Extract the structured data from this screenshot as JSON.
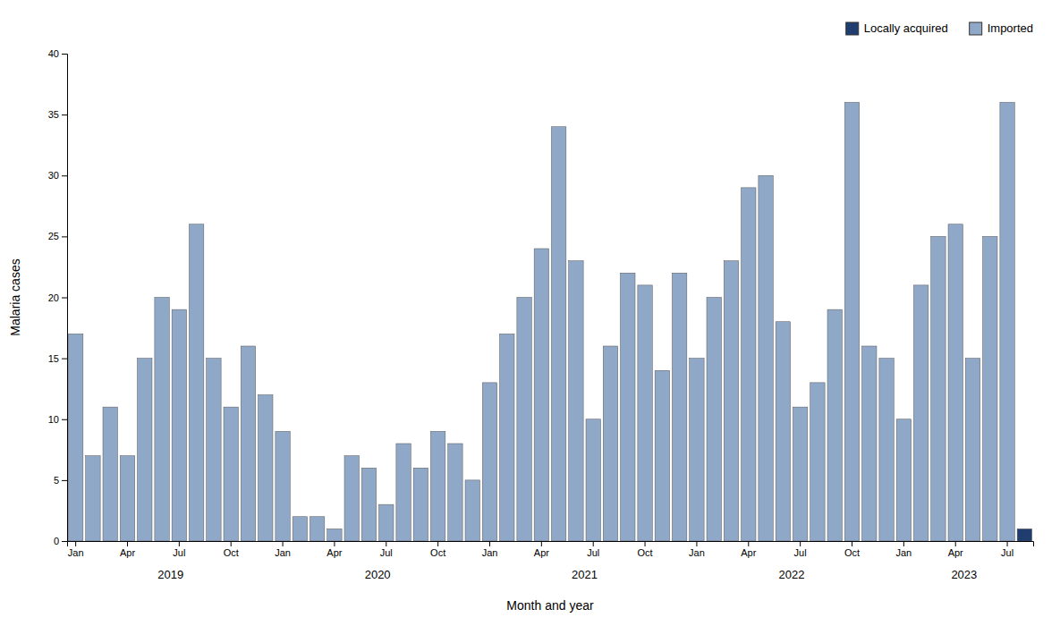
{
  "chart_data": {
    "type": "bar",
    "stacked": true,
    "xlabel": "Month and year",
    "ylabel": "Malaria cases",
    "categories": [
      "Jan",
      null,
      null,
      "Apr",
      null,
      null,
      "Jul",
      null,
      null,
      "Oct",
      null,
      null,
      "Jan",
      null,
      null,
      "Apr",
      null,
      null,
      "Jul",
      null,
      null,
      "Oct",
      null,
      null,
      "Jan",
      null,
      null,
      "Apr",
      null,
      null,
      "Jul",
      null,
      null,
      "Oct",
      null,
      null,
      "Jan",
      null,
      null,
      "Apr",
      null,
      null,
      "Jul",
      null,
      null,
      "Oct",
      null,
      null,
      "Jan",
      null,
      null,
      "Apr",
      null,
      null,
      "Jul",
      null
    ],
    "series": [
      {
        "name": "Imported",
        "color": "#8fa8c8",
        "values": [
          17,
          7,
          11,
          7,
          15,
          20,
          19,
          26,
          15,
          11,
          16,
          12,
          9,
          2,
          2,
          1,
          7,
          6,
          3,
          8,
          6,
          9,
          8,
          5,
          13,
          17,
          20,
          24,
          34,
          23,
          10,
          16,
          22,
          21,
          14,
          22,
          15,
          20,
          23,
          29,
          30,
          18,
          11,
          13,
          19,
          36,
          16,
          15,
          10,
          21,
          25,
          26,
          15,
          25,
          36,
          0
        ]
      },
      {
        "name": "Locally acquired",
        "color": "#1f3d6e",
        "values": [
          0,
          0,
          0,
          0,
          0,
          0,
          0,
          0,
          0,
          0,
          0,
          0,
          0,
          0,
          0,
          0,
          0,
          0,
          0,
          0,
          0,
          0,
          0,
          0,
          0,
          0,
          0,
          0,
          0,
          0,
          0,
          0,
          0,
          0,
          0,
          0,
          0,
          0,
          0,
          0,
          0,
          0,
          0,
          0,
          0,
          0,
          0,
          0,
          0,
          0,
          0,
          0,
          0,
          0,
          0,
          1
        ]
      }
    ],
    "annotations": [
      {
        "text": "2019",
        "x": 5.5
      },
      {
        "text": "2020",
        "x": 17.5
      },
      {
        "text": "2021",
        "x": 29.5
      },
      {
        "text": "2022",
        "x": 41.5
      },
      {
        "text": "2023",
        "x": 51.5
      }
    ],
    "ylim": [
      0,
      40
    ],
    "yticks": [
      0,
      5,
      10,
      15,
      20,
      25,
      30,
      35,
      40
    ],
    "grid": false,
    "legend": "upper right"
  }
}
